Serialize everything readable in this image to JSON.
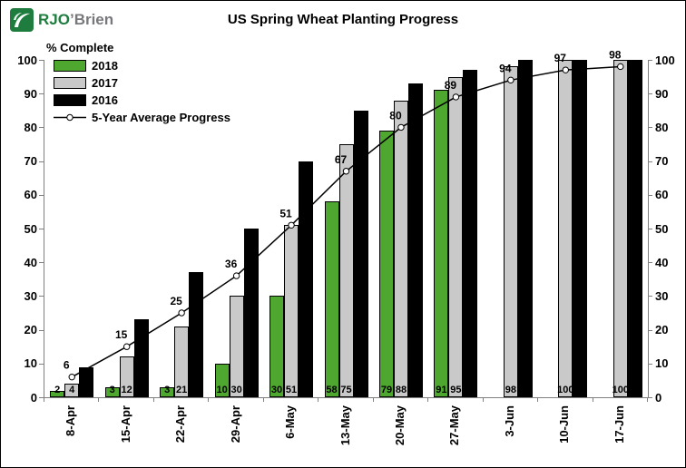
{
  "logo": {
    "primary": "RJO",
    "secondary": "’Brien",
    "brand_green": "#1e7d3e",
    "secondary_gray": "#77787b"
  },
  "chart_data": {
    "type": "bar",
    "title": "US Spring Wheat Planting Progress",
    "ylabel": "% Complete",
    "xlabel": "",
    "ylim": [
      0,
      100
    ],
    "y_ticks": [
      0,
      10,
      20,
      30,
      40,
      50,
      60,
      70,
      80,
      90,
      100
    ],
    "grid": false,
    "legend_position": "top-left",
    "categories": [
      "8-Apr",
      "15-Apr",
      "22-Apr",
      "29-Apr",
      "6-May",
      "13-May",
      "20-May",
      "27-May",
      "3-Jun",
      "10-Jun",
      "17-Jun"
    ],
    "series": [
      {
        "name": "2018",
        "type": "bar",
        "color": "#4ea72e",
        "labels_shown": true,
        "values": [
          2,
          3,
          3,
          10,
          30,
          58,
          79,
          91,
          null,
          null,
          null
        ]
      },
      {
        "name": "2017",
        "type": "bar",
        "color": "#c9c9c9",
        "labels_shown": true,
        "values": [
          4,
          12,
          21,
          30,
          51,
          75,
          88,
          95,
          98,
          100,
          100
        ]
      },
      {
        "name": "2016",
        "type": "bar",
        "color": "#000000",
        "labels_shown": false,
        "values": [
          9,
          23,
          37,
          50,
          70,
          85,
          93,
          97,
          100,
          100,
          100
        ]
      },
      {
        "name": "5-Year Average Progress",
        "type": "line",
        "color": "#000000",
        "marker": "open-circle",
        "labels_shown": true,
        "values": [
          6,
          15,
          25,
          36,
          51,
          67,
          80,
          89,
          94,
          97,
          98
        ]
      }
    ]
  }
}
